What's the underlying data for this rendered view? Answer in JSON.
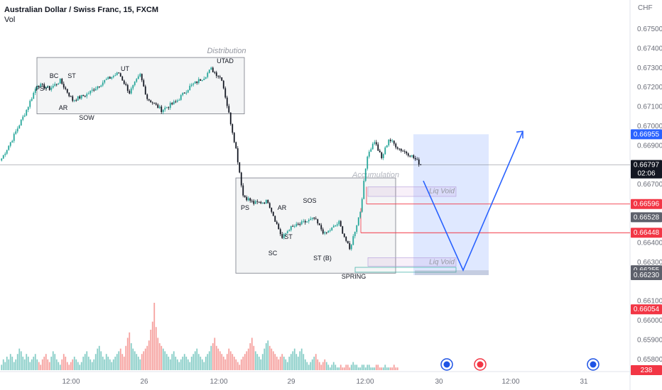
{
  "header": {
    "title": "Australian Dollar / Swiss Franc, 15, FXCM",
    "volume_label": "Vol"
  },
  "currency": "CHF",
  "colors": {
    "up": "#26a69a",
    "down": "#131722",
    "vol_up": "#26a69a",
    "vol_down": "#ef5350",
    "projection": "#2962ff",
    "level_red": "#f23645",
    "zone_box": "#787b86",
    "void_fill": "#9c27b0"
  },
  "chart_data": {
    "type": "candlestick",
    "symbol": "AUDCHF",
    "timeframe": "15",
    "y_axis_ticks": [
      "0.67500",
      "0.67400",
      "0.67300",
      "0.67200",
      "0.67100",
      "0.67000",
      "0.66900",
      "0.66700",
      "0.66400",
      "0.66300",
      "0.66100",
      "0.66000",
      "0.65900",
      "0.65800"
    ],
    "ylim": [
      0.6574,
      0.6762
    ],
    "x_axis_ticks": [
      "12:00",
      "26",
      "12:00",
      "29",
      "12:00",
      "30",
      "12:00",
      "31"
    ],
    "price_labels": [
      {
        "value": "0.66955",
        "style": "blue"
      },
      {
        "value": "0.66797",
        "sub": "02:06",
        "style": "dark"
      },
      {
        "value": "0.66596",
        "style": "red"
      },
      {
        "value": "0.66528",
        "style": "gray"
      },
      {
        "value": "0.66448",
        "style": "red"
      },
      {
        "value": "0.66255",
        "style": "gray"
      },
      {
        "value": "0.66230",
        "style": "gray"
      },
      {
        "value": "0.66054",
        "style": "red"
      },
      {
        "value": "238",
        "style": "red"
      }
    ],
    "current_price": 0.66797,
    "levels": {
      "red_upper": 0.66596,
      "red_lower": 0.66448,
      "target_high": 0.66955
    },
    "zones": [
      {
        "label": "Distribution",
        "top": 0.6735,
        "bottom": 0.6706
      },
      {
        "label": "Accumulation",
        "top": 0.6673,
        "bottom": 0.6624
      }
    ],
    "liq_void_labels": [
      "Liq Void",
      "Liq Void"
    ],
    "wyckoff_labels": [
      "PSY",
      "BC",
      "ST",
      "AR",
      "SOW",
      "UT",
      "UTAD",
      "PS",
      "SC",
      "AR",
      "ST",
      "SOS",
      "ST (B)",
      "SPRING"
    ],
    "close_anchors": [
      {
        "i": 0,
        "c": 0.6683
      },
      {
        "i": 6,
        "c": 0.6693
      },
      {
        "i": 14,
        "c": 0.6708
      },
      {
        "i": 20,
        "c": 0.6721
      },
      {
        "i": 27,
        "c": 0.6719
      },
      {
        "i": 33,
        "c": 0.6723
      },
      {
        "i": 40,
        "c": 0.6713
      },
      {
        "i": 48,
        "c": 0.6716
      },
      {
        "i": 58,
        "c": 0.6723
      },
      {
        "i": 66,
        "c": 0.6727
      },
      {
        "i": 72,
        "c": 0.6717
      },
      {
        "i": 78,
        "c": 0.6726
      },
      {
        "i": 82,
        "c": 0.6714
      },
      {
        "i": 90,
        "c": 0.6708
      },
      {
        "i": 98,
        "c": 0.6712
      },
      {
        "i": 106,
        "c": 0.672
      },
      {
        "i": 114,
        "c": 0.6725
      },
      {
        "i": 118,
        "c": 0.6729
      },
      {
        "i": 124,
        "c": 0.6724
      },
      {
        "i": 128,
        "c": 0.6706
      },
      {
        "i": 132,
        "c": 0.6688
      },
      {
        "i": 136,
        "c": 0.6664
      },
      {
        "i": 142,
        "c": 0.666
      },
      {
        "i": 150,
        "c": 0.6661
      },
      {
        "i": 158,
        "c": 0.6642
      },
      {
        "i": 162,
        "c": 0.6647
      },
      {
        "i": 170,
        "c": 0.665
      },
      {
        "i": 176,
        "c": 0.6652
      },
      {
        "i": 182,
        "c": 0.6644
      },
      {
        "i": 190,
        "c": 0.665
      },
      {
        "i": 196,
        "c": 0.6636
      },
      {
        "i": 202,
        "c": 0.6656
      },
      {
        "i": 206,
        "c": 0.6685
      },
      {
        "i": 210,
        "c": 0.6692
      },
      {
        "i": 214,
        "c": 0.6683
      },
      {
        "i": 218,
        "c": 0.6693
      },
      {
        "i": 224,
        "c": 0.6688
      },
      {
        "i": 230,
        "c": 0.6685
      },
      {
        "i": 236,
        "c": 0.668
      }
    ],
    "volume": [
      2,
      4,
      3,
      5,
      4,
      6,
      5,
      3,
      4,
      6,
      8,
      7,
      5,
      4,
      6,
      5,
      3,
      4,
      5,
      6,
      4,
      3,
      2,
      4,
      5,
      6,
      4,
      3,
      5,
      7,
      6,
      4,
      3,
      2,
      4,
      6,
      5,
      3,
      2,
      3,
      4,
      5,
      4,
      3,
      2,
      3,
      5,
      6,
      7,
      5,
      4,
      3,
      4,
      6,
      8,
      9,
      7,
      5,
      4,
      6,
      5,
      4,
      3,
      4,
      5,
      6,
      7,
      8,
      6,
      5,
      9,
      12,
      14,
      10,
      8,
      7,
      6,
      5,
      4,
      6,
      7,
      8,
      9,
      11,
      15,
      18,
      25,
      16,
      12,
      10,
      9,
      8,
      7,
      6,
      5,
      4,
      6,
      7,
      5,
      4,
      3,
      4,
      5,
      6,
      5,
      4,
      3,
      5,
      6,
      7,
      8,
      6,
      5,
      4,
      3,
      5,
      6,
      7,
      9,
      10,
      12,
      9,
      8,
      7,
      6,
      5,
      4,
      6,
      8,
      7,
      6,
      5,
      4,
      3,
      2,
      4,
      5,
      6,
      7,
      8,
      10,
      12,
      9,
      7,
      6,
      5,
      4,
      6,
      8,
      10,
      11,
      9,
      8,
      7,
      6,
      5,
      4,
      5,
      6,
      5,
      4,
      3,
      5,
      6,
      7,
      8,
      6,
      5,
      7,
      8,
      6,
      4,
      3,
      2,
      3,
      4,
      5,
      6,
      4,
      3,
      2,
      3,
      4,
      3,
      2,
      1,
      2,
      3,
      2,
      1,
      1,
      2,
      1,
      1,
      2,
      2,
      1,
      2,
      3,
      2,
      2,
      1,
      1,
      2,
      2,
      1,
      2,
      2,
      1,
      1,
      1,
      2,
      2,
      1,
      1,
      1,
      2,
      1,
      1,
      1,
      1,
      2,
      1,
      1
    ]
  }
}
